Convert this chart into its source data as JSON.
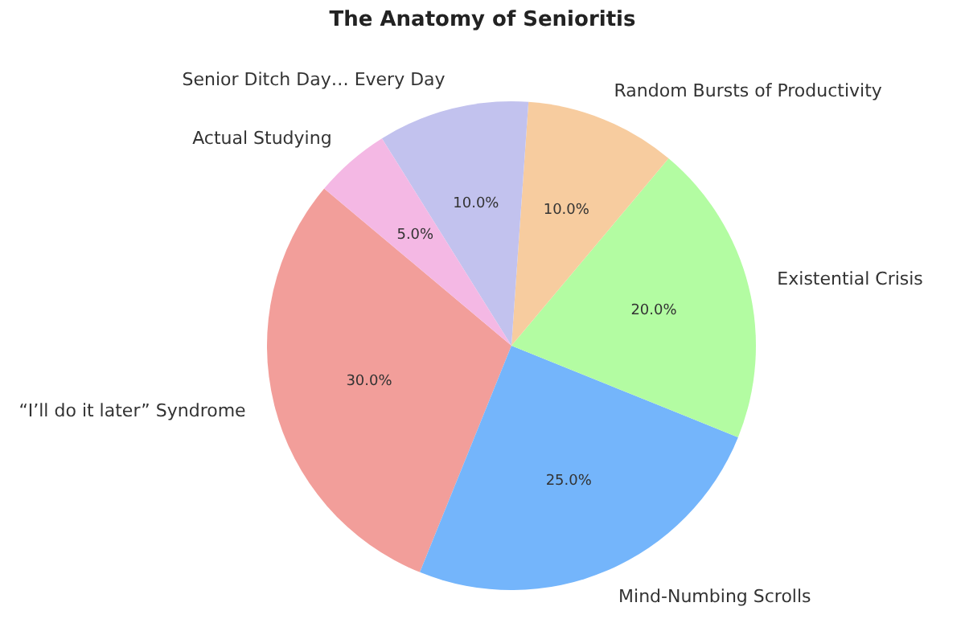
{
  "chart_data": {
    "type": "pie",
    "title": "The Anatomy of Senioritis",
    "categories": [
      "“I’ll do it later” Syndrome",
      "Mind-Numbing Scrolls",
      "Existential Crisis",
      "Random Bursts of Productivity",
      "Senior Ditch Day… Every Day",
      "Actual Studying"
    ],
    "values": [
      30,
      25,
      20,
      10,
      10,
      5
    ],
    "colors": [
      "#f29e9a",
      "#74b5fb",
      "#b3fca2",
      "#f7cc9f",
      "#c2c2ee",
      "#f4b8e4"
    ],
    "value_labels": [
      "30.0%",
      "25.0%",
      "20.0%",
      "10.0%",
      "10.0%",
      "5.0%"
    ]
  }
}
